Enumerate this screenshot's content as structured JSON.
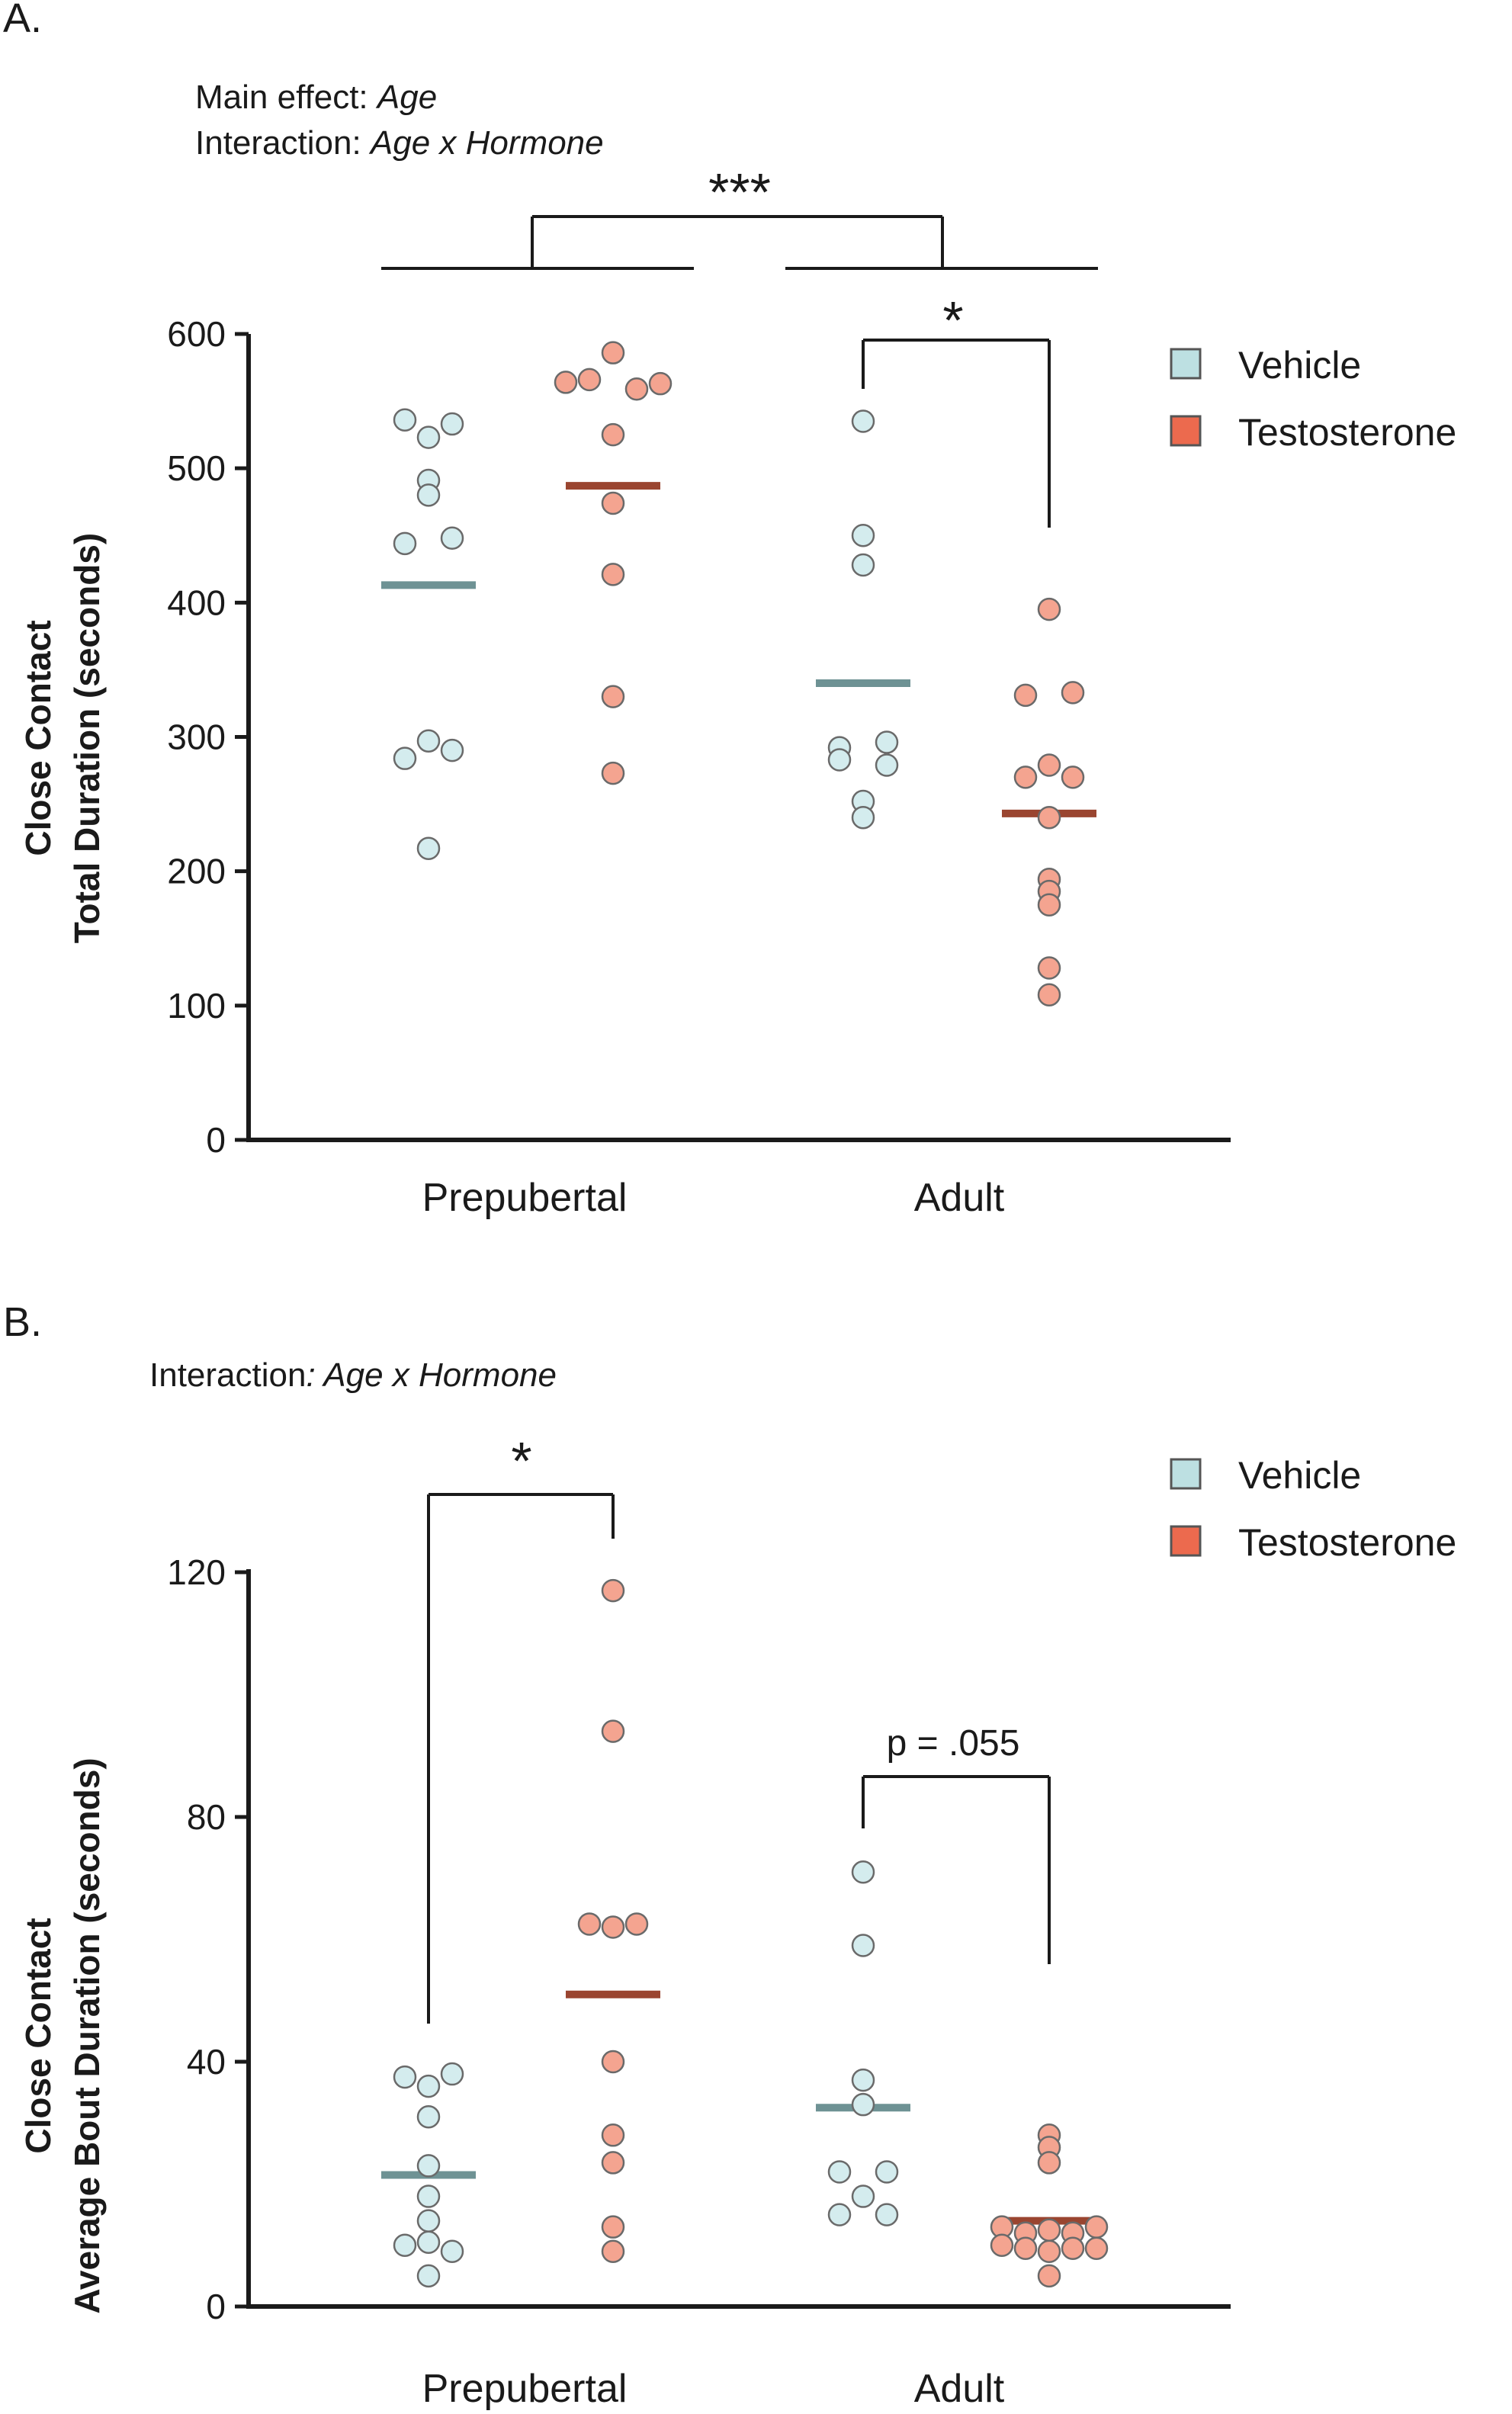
{
  "chart_data": [
    {
      "panel": "A.",
      "type": "scatter",
      "annotations": [
        {
          "prefix": "Main effect: ",
          "term": "Age"
        },
        {
          "prefix": "Interaction: ",
          "term": "Age x Hormone"
        }
      ],
      "ylabel_lines": [
        "Close Contact",
        "Total Duration (seconds)"
      ],
      "ylim": [
        0,
        600
      ],
      "yticks": [
        0,
        100,
        200,
        300,
        400,
        500,
        600
      ],
      "categories": [
        "Prepubertal",
        "Adult"
      ],
      "legend": [
        {
          "label": "Vehicle",
          "color": "#7aa2a4"
        },
        {
          "label": "Testosterone",
          "color": "#e8674e"
        }
      ],
      "series": [
        {
          "name": "Vehicle",
          "fill": "#d4ecee",
          "mean_color": "#6e9294",
          "groups": [
            {
              "category": "Prepubertal",
              "points": [
                {
                  "x": -1,
                  "y": 536
                },
                {
                  "x": 0,
                  "y": 523
                },
                {
                  "x": 1,
                  "y": 533
                },
                {
                  "x": 0,
                  "y": 491
                },
                {
                  "x": 0,
                  "y": 480
                },
                {
                  "x": -1,
                  "y": 444
                },
                {
                  "x": 1,
                  "y": 448
                },
                {
                  "x": -1,
                  "y": 284
                },
                {
                  "x": 0,
                  "y": 297
                },
                {
                  "x": 1,
                  "y": 290
                },
                {
                  "x": 0,
                  "y": 217
                }
              ],
              "mean": 413
            },
            {
              "category": "Adult",
              "points": [
                {
                  "x": 0,
                  "y": 535
                },
                {
                  "x": 0,
                  "y": 450
                },
                {
                  "x": 0,
                  "y": 428
                },
                {
                  "x": -1,
                  "y": 292
                },
                {
                  "x": 1,
                  "y": 296
                },
                {
                  "x": -1,
                  "y": 283
                },
                {
                  "x": 1,
                  "y": 279
                },
                {
                  "x": 0,
                  "y": 252
                },
                {
                  "x": 0,
                  "y": 240
                }
              ],
              "mean": 340
            }
          ]
        },
        {
          "name": "Testosterone",
          "fill": "#f4a490",
          "mean_color": "#9a4530",
          "groups": [
            {
              "category": "Prepubertal",
              "points": [
                {
                  "x": 0,
                  "y": 586
                },
                {
                  "x": -2,
                  "y": 564
                },
                {
                  "x": -1,
                  "y": 566
                },
                {
                  "x": 1,
                  "y": 559
                },
                {
                  "x": 2,
                  "y": 563
                },
                {
                  "x": 0,
                  "y": 525
                },
                {
                  "x": 0,
                  "y": 474
                },
                {
                  "x": 0,
                  "y": 421
                },
                {
                  "x": 0,
                  "y": 330
                },
                {
                  "x": 0,
                  "y": 273
                }
              ],
              "mean": 487
            },
            {
              "category": "Adult",
              "points": [
                {
                  "x": 0,
                  "y": 395
                },
                {
                  "x": -1,
                  "y": 331
                },
                {
                  "x": 1,
                  "y": 333
                },
                {
                  "x": 0,
                  "y": 279
                },
                {
                  "x": -1,
                  "y": 270
                },
                {
                  "x": 1,
                  "y": 270
                },
                {
                  "x": 0,
                  "y": 240
                },
                {
                  "x": 0,
                  "y": 194
                },
                {
                  "x": 0,
                  "y": 185
                },
                {
                  "x": 0,
                  "y": 175
                },
                {
                  "x": 0,
                  "y": 128
                },
                {
                  "x": 0,
                  "y": 108
                }
              ],
              "mean": 243
            }
          ]
        }
      ],
      "significance": [
        {
          "label": "***",
          "between": "Prepubertal vs Adult"
        },
        {
          "label": "*",
          "between": "Adult Vehicle vs Adult Testosterone"
        }
      ]
    },
    {
      "panel": "B.",
      "type": "scatter",
      "annotations": [
        {
          "prefix": "Interaction",
          "term": ": Age x Hormone"
        }
      ],
      "ylabel_lines": [
        "Close Contact",
        "Average Bout Duration (seconds)"
      ],
      "ylim": [
        0,
        120
      ],
      "yticks": [
        0,
        40,
        80,
        120
      ],
      "categories": [
        "Prepubertal",
        "Adult"
      ],
      "legend": [
        {
          "label": "Vehicle",
          "color": "#7aa2a4"
        },
        {
          "label": "Testosterone",
          "color": "#e8674e"
        }
      ],
      "series": [
        {
          "name": "Vehicle",
          "fill": "#d4ecee",
          "mean_color": "#6e9294",
          "groups": [
            {
              "category": "Prepubertal",
              "points": [
                {
                  "x": -1,
                  "y": 37.5
                },
                {
                  "x": 0,
                  "y": 36
                },
                {
                  "x": 1,
                  "y": 38
                },
                {
                  "x": 0,
                  "y": 31
                },
                {
                  "x": 0,
                  "y": 23
                },
                {
                  "x": 0,
                  "y": 18
                },
                {
                  "x": 0,
                  "y": 14
                },
                {
                  "x": -1,
                  "y": 10
                },
                {
                  "x": 0,
                  "y": 10.5
                },
                {
                  "x": 1,
                  "y": 9
                },
                {
                  "x": 0,
                  "y": 5
                }
              ],
              "mean": 21.5
            },
            {
              "category": "Adult",
              "points": [
                {
                  "x": 0,
                  "y": 71
                },
                {
                  "x": 0,
                  "y": 59
                },
                {
                  "x": 0,
                  "y": 37
                },
                {
                  "x": 0,
                  "y": 33
                },
                {
                  "x": -1,
                  "y": 22
                },
                {
                  "x": 1,
                  "y": 22
                },
                {
                  "x": 0,
                  "y": 18
                },
                {
                  "x": -1,
                  "y": 15
                },
                {
                  "x": 1,
                  "y": 15
                }
              ],
              "mean": 32.5
            }
          ]
        },
        {
          "name": "Testosterone",
          "fill": "#f4a490",
          "mean_color": "#9a4530",
          "groups": [
            {
              "category": "Prepubertal",
              "points": [
                {
                  "x": 0,
                  "y": 117
                },
                {
                  "x": 0,
                  "y": 94
                },
                {
                  "x": -1,
                  "y": 62.5
                },
                {
                  "x": 0,
                  "y": 62
                },
                {
                  "x": 1,
                  "y": 62.5
                },
                {
                  "x": 0,
                  "y": 40
                },
                {
                  "x": 0,
                  "y": 28
                },
                {
                  "x": 0,
                  "y": 23.5
                },
                {
                  "x": 0,
                  "y": 13
                },
                {
                  "x": 0,
                  "y": 9
                }
              ],
              "mean": 51
            },
            {
              "category": "Adult",
              "points": [
                {
                  "x": 0,
                  "y": 28
                },
                {
                  "x": 0,
                  "y": 26
                },
                {
                  "x": 0,
                  "y": 23.5
                },
                {
                  "x": -2,
                  "y": 13
                },
                {
                  "x": -1,
                  "y": 12
                },
                {
                  "x": 0,
                  "y": 12.5
                },
                {
                  "x": 1,
                  "y": 12
                },
                {
                  "x": 2,
                  "y": 13
                },
                {
                  "x": -2,
                  "y": 10
                },
                {
                  "x": -1,
                  "y": 9.5
                },
                {
                  "x": 0,
                  "y": 9
                },
                {
                  "x": 1,
                  "y": 9.5
                },
                {
                  "x": 2,
                  "y": 9.5
                },
                {
                  "x": 0,
                  "y": 5
                }
              ],
              "mean": 14
            }
          ]
        }
      ],
      "significance": [
        {
          "label": "*",
          "between": "Prepubertal Vehicle vs Prepubertal Testosterone"
        },
        {
          "label": "p = .055",
          "between": "Adult Vehicle vs Adult Testosterone"
        }
      ]
    }
  ]
}
